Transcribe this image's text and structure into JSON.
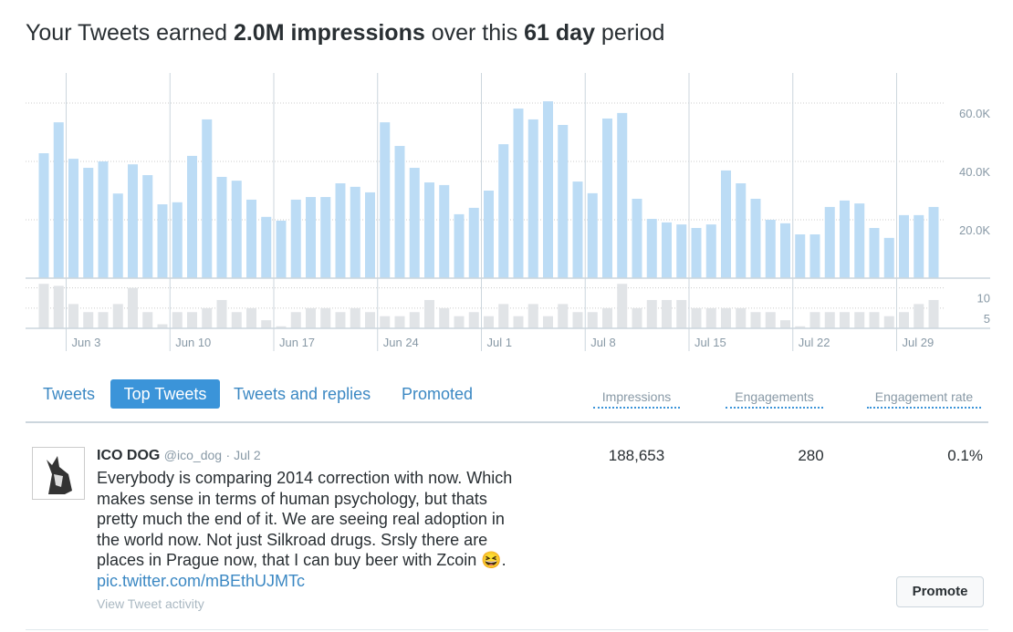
{
  "header": {
    "title": [
      "Your Tweets earned ",
      "2.0M impressions",
      " over this ",
      "61 day",
      " period"
    ]
  },
  "chart_data": [
    {
      "type": "bar",
      "name": "impressions",
      "color": "#bcdcf5",
      "categories": [
        null,
        null,
        "Jun 3",
        null,
        null,
        null,
        null,
        null,
        null,
        "Jun 10",
        null,
        null,
        null,
        null,
        null,
        null,
        "Jun 17",
        null,
        null,
        null,
        null,
        null,
        null,
        "Jun 24",
        null,
        null,
        null,
        null,
        null,
        null,
        "Jul 1",
        null,
        null,
        null,
        null,
        null,
        null,
        "Jul 8",
        null,
        null,
        null,
        null,
        null,
        null,
        "Jul 15",
        null,
        null,
        null,
        null,
        null,
        null,
        "Jul 22",
        null,
        null,
        null,
        null,
        null,
        null,
        "Jul 29",
        null,
        null
      ],
      "values": [
        42800,
        53400,
        40900,
        37800,
        40000,
        29000,
        39000,
        35300,
        25300,
        26000,
        41900,
        54400,
        34700,
        33400,
        26900,
        21000,
        19700,
        26900,
        27800,
        27800,
        32500,
        31300,
        29400,
        53400,
        45300,
        37800,
        32800,
        31900,
        21900,
        24100,
        30000,
        45900,
        58100,
        54400,
        60600,
        52500,
        33100,
        29100,
        54700,
        56600,
        27200,
        20300,
        19100,
        18400,
        17200,
        18400,
        36900,
        32500,
        27200,
        20000,
        18800,
        15000,
        15000,
        24400,
        26600,
        25600,
        17200,
        13800,
        21600,
        21600,
        24400
      ],
      "ylim": [
        0,
        70000
      ],
      "yticks": [
        {
          "value": 20000,
          "label": "20.0K"
        },
        {
          "value": 40000,
          "label": "40.0K"
        },
        {
          "value": 60000,
          "label": "60.0K"
        }
      ],
      "grid": true
    },
    {
      "type": "bar",
      "name": "engagements",
      "color": "#e1e4e7",
      "values": [
        11,
        10.5,
        6,
        4,
        4,
        6,
        10,
        4,
        1,
        4,
        4,
        5,
        7,
        4,
        5,
        2,
        0.5,
        4,
        5,
        5,
        4,
        5,
        4,
        3,
        3,
        4,
        7,
        5,
        3,
        4,
        3,
        6,
        3,
        6,
        3,
        6,
        4,
        4,
        5,
        11,
        5,
        7,
        7,
        7,
        5,
        5,
        5,
        5,
        4,
        4,
        2,
        0.5,
        4,
        4,
        4,
        4,
        4,
        3,
        4,
        6,
        7
      ],
      "ylim": [
        0,
        11.5
      ],
      "yticks": [
        5,
        10
      ],
      "grid": true
    }
  ],
  "tabs": [
    "Tweets",
    "Top Tweets",
    "Tweets and replies",
    "Promoted"
  ],
  "columns": [
    "Impressions",
    "Engagements",
    "Engagement rate"
  ],
  "tweet": {
    "name": "ICO DOG",
    "handle": "@ico_dog",
    "date": "· Jul 2",
    "lines": [
      "Everybody is comparing 2014 correction with now. Which",
      "makes sense in terms of human psychology, but thats",
      "pretty much the end of it. We are seeing real adoption in",
      "the world now. Not just Silkroad drugs.  Srsly there are",
      "places in Prague now, that I can buy beer with Zcoin 😆."
    ],
    "link": "pic.twitter.com/mBEthUJMTc",
    "activity": "View Tweet activity",
    "impressions": "188,653",
    "engagements": "280",
    "rate": "0.1%",
    "button": "Promote"
  }
}
